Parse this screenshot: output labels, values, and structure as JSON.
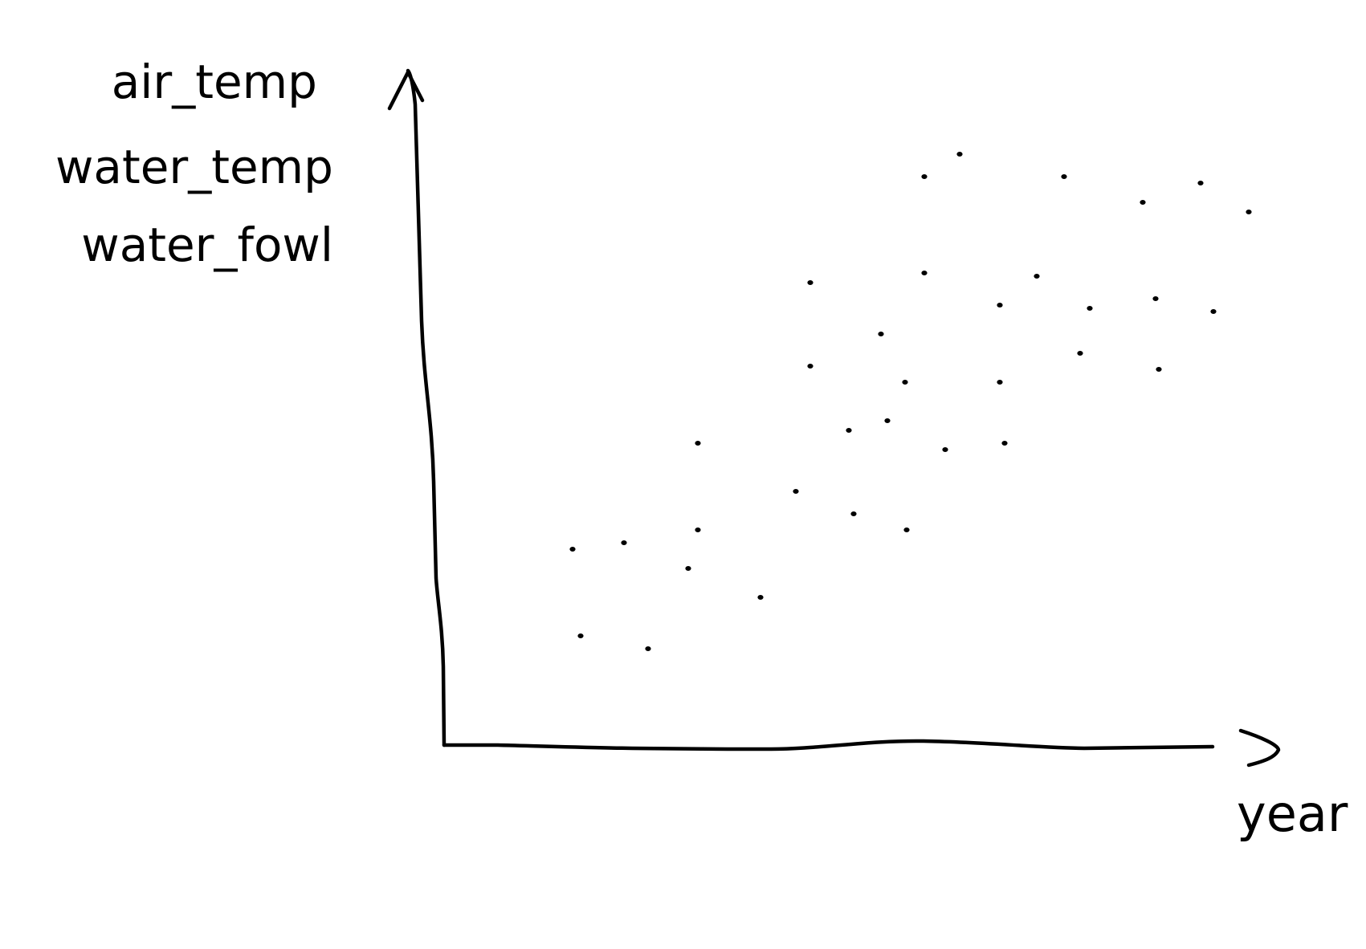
{
  "chart_data": {
    "type": "scatter",
    "ylabel_lines": [
      "air_temp",
      "water_temp",
      "water_fowl"
    ],
    "xlabel": "year",
    "xlim": [
      0,
      100
    ],
    "ylim": [
      0,
      100
    ],
    "grid": false,
    "ticks": false,
    "series": [
      {
        "points": [
          {
            "x": 16.0,
            "y": 30.5
          },
          {
            "x": 17.0,
            "y": 17.0
          },
          {
            "x": 22.4,
            "y": 31.5
          },
          {
            "x": 25.4,
            "y": 15.0
          },
          {
            "x": 30.4,
            "y": 27.5
          },
          {
            "x": 31.6,
            "y": 33.5
          },
          {
            "x": 31.6,
            "y": 47.0
          },
          {
            "x": 39.4,
            "y": 23.0
          },
          {
            "x": 43.8,
            "y": 39.5
          },
          {
            "x": 45.6,
            "y": 72.0
          },
          {
            "x": 45.6,
            "y": 59.0
          },
          {
            "x": 50.4,
            "y": 49.0
          },
          {
            "x": 51.0,
            "y": 36.0
          },
          {
            "x": 54.4,
            "y": 64.0
          },
          {
            "x": 55.2,
            "y": 50.5
          },
          {
            "x": 57.4,
            "y": 56.5
          },
          {
            "x": 57.6,
            "y": 33.5
          },
          {
            "x": 59.8,
            "y": 88.5
          },
          {
            "x": 59.8,
            "y": 73.5
          },
          {
            "x": 64.2,
            "y": 92.0
          },
          {
            "x": 62.4,
            "y": 46.0
          },
          {
            "x": 69.2,
            "y": 68.5
          },
          {
            "x": 69.2,
            "y": 56.5
          },
          {
            "x": 69.8,
            "y": 47.0
          },
          {
            "x": 73.8,
            "y": 73.0
          },
          {
            "x": 77.2,
            "y": 88.5
          },
          {
            "x": 79.2,
            "y": 61.0
          },
          {
            "x": 80.4,
            "y": 68.0
          },
          {
            "x": 87.0,
            "y": 84.5
          },
          {
            "x": 88.6,
            "y": 69.5
          },
          {
            "x": 89.0,
            "y": 58.5
          },
          {
            "x": 94.2,
            "y": 87.5
          },
          {
            "x": 95.8,
            "y": 67.5
          },
          {
            "x": 100.2,
            "y": 83.0
          }
        ]
      }
    ]
  }
}
